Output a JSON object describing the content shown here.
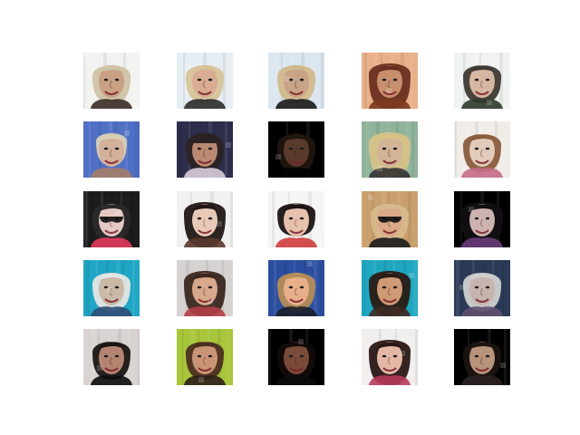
{
  "figure": {
    "background": "#ffffff",
    "grid": {
      "rows": 5,
      "cols": 5
    },
    "tiles": [
      {
        "bg": "#f2f2f0",
        "skin": "#c9a084",
        "hair": "#cfc3a4",
        "accent": "#3b2f27",
        "variant": "blonde-short"
      },
      {
        "bg": "#e7eef3",
        "skin": "#d8ad93",
        "hair": "#d7c39a",
        "accent": "#2a2a2a",
        "variant": "blonde-short"
      },
      {
        "bg": "#dbe6f0",
        "skin": "#c8a387",
        "hair": "#d2b98b",
        "accent": "#1a1a1a",
        "variant": "blonde-short"
      },
      {
        "bg": "#e9b08a",
        "skin": "#c78f6e",
        "hair": "#6a2f1f",
        "accent": "#7b3a20",
        "variant": "dark-long"
      },
      {
        "bg": "#f0f3f2",
        "skin": "#d7b7a1",
        "hair": "#3e3a33",
        "accent": "#2d3a2b",
        "variant": "dark-short"
      },
      {
        "bg": "#5070c5",
        "skin": "#d3b09a",
        "hair": "#d8d0b6",
        "accent": "#a57d6a",
        "variant": "blonde-bun"
      },
      {
        "bg": "#2d2e4c",
        "skin": "#b98a71",
        "hair": "#2b2323",
        "accent": "#d8cdd9",
        "variant": "cap"
      },
      {
        "bg": "#000000",
        "skin": "#5a3a2b",
        "hair": "#20150f",
        "accent": "#000000",
        "variant": "dark-short"
      },
      {
        "bg": "#8fb39b",
        "skin": "#d2b496",
        "hair": "#d7c289",
        "accent": "#333333",
        "variant": "blonde-long"
      },
      {
        "bg": "#f0ede9",
        "skin": "#e2cbbb",
        "hair": "#8a5b3d",
        "accent": "#c56b86",
        "variant": "brown-short"
      },
      {
        "bg": "#1c1c1f",
        "skin": "#e4c8c4",
        "hair": "#2b2a2a",
        "accent": "#e33b5c",
        "variant": "sunglasses"
      },
      {
        "bg": "#f1f1f1",
        "skin": "#e8c8b6",
        "hair": "#1f1714",
        "accent": "#5a3a2c",
        "variant": "dark-long"
      },
      {
        "bg": "#f5f5f5",
        "skin": "#e7c1ad",
        "hair": "#1b1412",
        "accent": "#cf3d3d",
        "variant": "dark-bob"
      },
      {
        "bg": "#caa06f",
        "skin": "#d9a989",
        "hair": "#d6b98c",
        "accent": "#1b1b1b",
        "variant": "sunglasses"
      },
      {
        "bg": "#000000",
        "skin": "#cdb3b0",
        "hair": "#120f12",
        "accent": "#6a3c7b",
        "variant": "dark-long"
      },
      {
        "bg": "#1ea6c4",
        "skin": "#cab9a7",
        "hair": "#e5e5e5",
        "accent": "#2e4e73",
        "variant": "blonde-short"
      },
      {
        "bg": "#d7d2d2",
        "skin": "#d7a889",
        "hair": "#3a2820",
        "accent": "#b33f46",
        "variant": "dark-long"
      },
      {
        "bg": "#2c4ea0",
        "skin": "#e7b08a",
        "hair": "#b48c58",
        "accent": "#1b1f2b",
        "variant": "brown-short"
      },
      {
        "bg": "#1fa7c0",
        "skin": "#cf9a76",
        "hair": "#2a1a14",
        "accent": "#3e2a24",
        "variant": "dark-long"
      },
      {
        "bg": "#2b3a56",
        "skin": "#c7b4af",
        "hair": "#cfd1cf",
        "accent": "#5f4f6f",
        "variant": "blonde-short"
      },
      {
        "bg": "#d9d4d1",
        "skin": "#b38470",
        "hair": "#1a1613",
        "accent": "#0c0c0c",
        "variant": "dark-short"
      },
      {
        "bg": "#a8c63a",
        "skin": "#c99476",
        "hair": "#4b2f20",
        "accent": "#2d1e17",
        "variant": "brown-short"
      },
      {
        "bg": "#000000",
        "skin": "#7a4b39",
        "hair": "#120b09",
        "accent": "#0b0b0b",
        "variant": "dark-short"
      },
      {
        "bg": "#f1eeee",
        "skin": "#e3b7a6",
        "hair": "#2a1716",
        "accent": "#b73a5a",
        "variant": "dark-long"
      },
      {
        "bg": "#000000",
        "skin": "#b7937b",
        "hair": "#1a1411",
        "accent": "#2a2220",
        "variant": "dark-short"
      }
    ]
  }
}
